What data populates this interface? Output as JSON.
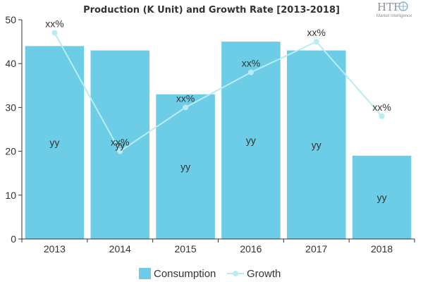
{
  "chart_data": {
    "type": "bar",
    "title": "Production (K Unit) and Growth Rate [2013-2018]",
    "categories": [
      "2013",
      "2014",
      "2015",
      "2016",
      "2017",
      "2018"
    ],
    "series": [
      {
        "name": "Consumption",
        "type": "bar",
        "color": "#6dcde6",
        "values": [
          44,
          43,
          33,
          45,
          43,
          19
        ],
        "labels": [
          "yy",
          "yy",
          "yy",
          "yy",
          "yy",
          "yy"
        ]
      },
      {
        "name": "Growth",
        "type": "line",
        "color": "#b9ecf2",
        "values": [
          47,
          20,
          30,
          38,
          45,
          28
        ],
        "labels": [
          "xx%",
          "xx%",
          "xx%",
          "xx%",
          "xx%",
          "xx%"
        ]
      }
    ],
    "ylim": [
      0,
      50
    ],
    "yticks": [
      0,
      10,
      20,
      30,
      40,
      50
    ],
    "grid": false,
    "legend": "bottom"
  },
  "logo": {
    "text": "HTF",
    "subtext": "Market Intelligence"
  }
}
